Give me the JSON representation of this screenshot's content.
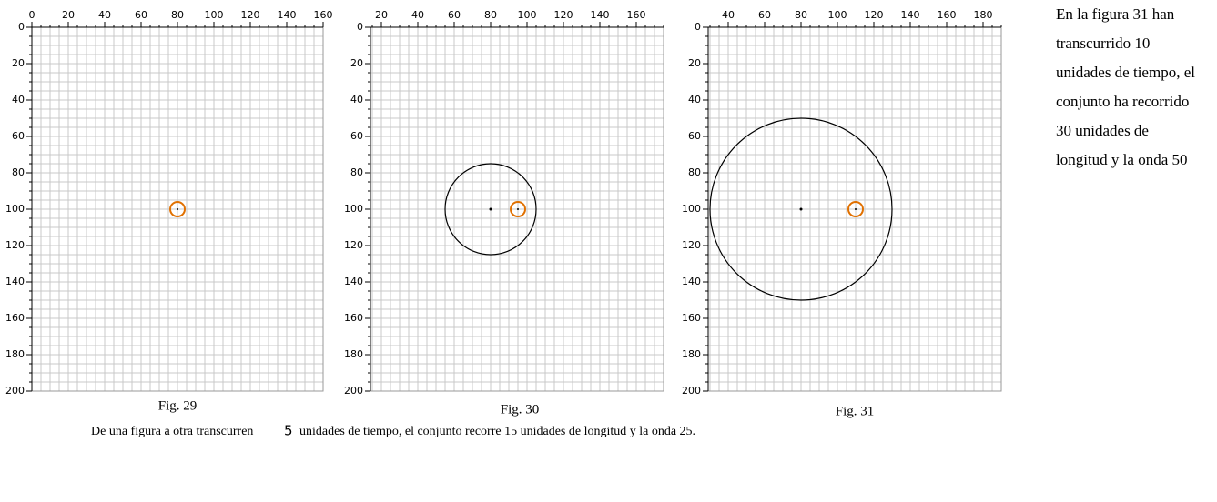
{
  "panels": [
    {
      "xlim": [
        0,
        160
      ],
      "ylim": [
        0,
        200
      ],
      "xticks": [
        0,
        20,
        40,
        60,
        80,
        100,
        120,
        140,
        160
      ],
      "yticks": [
        0,
        20,
        40,
        60,
        80,
        100,
        120,
        140,
        160,
        180,
        200
      ],
      "grid_step": 5,
      "caption": "Fig. 29",
      "source": {
        "x": 80,
        "y": 100
      }
    },
    {
      "xlim": [
        14,
        175
      ],
      "ylim": [
        0,
        200
      ],
      "xticks": [
        20,
        40,
        60,
        80,
        100,
        120,
        140,
        160
      ],
      "yticks": [
        0,
        20,
        40,
        60,
        80,
        100,
        120,
        140,
        160,
        180,
        200
      ],
      "grid_step": 5,
      "caption": "Fig. 30",
      "source": {
        "x": 95,
        "y": 100
      },
      "wave": {
        "x": 80,
        "y": 100,
        "r": 25
      }
    },
    {
      "xlim": [
        29,
        190
      ],
      "ylim": [
        0,
        200
      ],
      "xticks": [
        40,
        60,
        80,
        100,
        120,
        140,
        160,
        180
      ],
      "yticks": [
        0,
        20,
        40,
        60,
        80,
        100,
        120,
        140,
        160,
        180,
        200
      ],
      "grid_step": 5,
      "caption": "Fig. 31",
      "source": {
        "x": 110,
        "y": 100
      },
      "wave": {
        "x": 80,
        "y": 100,
        "r": 50
      }
    }
  ],
  "footnote": {
    "before": "De una figura a otra transcurren",
    "number": "5",
    "after": "unidades de tiempo, el conjunto recorre 15 unidades de longitud y la onda 25."
  },
  "side_text": [
    "En la figura 31 han",
    "transcurrido 10",
    "unidades de tiempo, el",
    "conjunto ha recorrido",
    "30 unidades de",
    "longitud y la onda 50"
  ]
}
